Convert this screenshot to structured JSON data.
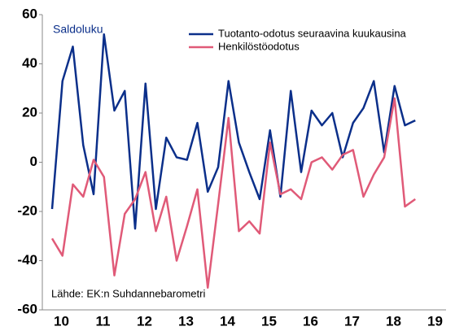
{
  "chart_data": {
    "type": "line",
    "y_label": "Saldoluku",
    "source": "Lähde: EK:n Suhdannebarometri",
    "categories": [
      null,
      null,
      null,
      null,
      null,
      null,
      null,
      null,
      null,
      null,
      null,
      null,
      null,
      null,
      null,
      null,
      null,
      null,
      null,
      null,
      null,
      null,
      null,
      null,
      null,
      null,
      null,
      null,
      null,
      null,
      null,
      null,
      null,
      null,
      null,
      null
    ],
    "year_labels": [
      "10",
      "11",
      "12",
      "13",
      "14",
      "15",
      "16",
      "17",
      "18",
      "19"
    ],
    "series": [
      {
        "name": "Tuotanto-odotus seuraavina kuukausina",
        "color": "#0b2f8a",
        "values": [
          -19,
          33,
          47,
          7,
          -13,
          52,
          21,
          29,
          -27,
          32,
          -19,
          10,
          2,
          1,
          16,
          -12,
          -2,
          33,
          8,
          -4,
          -15,
          13,
          -14,
          29,
          -4,
          21,
          15,
          20,
          2,
          16,
          22,
          33,
          4,
          31,
          15,
          17
        ]
      },
      {
        "name": "Henkilöstöodotus",
        "color": "#e05a78",
        "values": [
          -31,
          -38,
          -9,
          -14,
          1,
          -6,
          -46,
          -21,
          -15,
          -4,
          -28,
          -14,
          -40,
          -26,
          -11,
          -51,
          -17,
          18,
          -28,
          -24,
          -29,
          8,
          -13,
          -11,
          -15,
          0,
          2,
          -3,
          3,
          5,
          -14,
          -5,
          2,
          26,
          -18,
          -15
        ]
      }
    ],
    "ylim": [
      -60,
      60
    ],
    "yticks": [
      -60,
      -40,
      -20,
      0,
      20,
      40,
      60
    ],
    "grid": false
  }
}
